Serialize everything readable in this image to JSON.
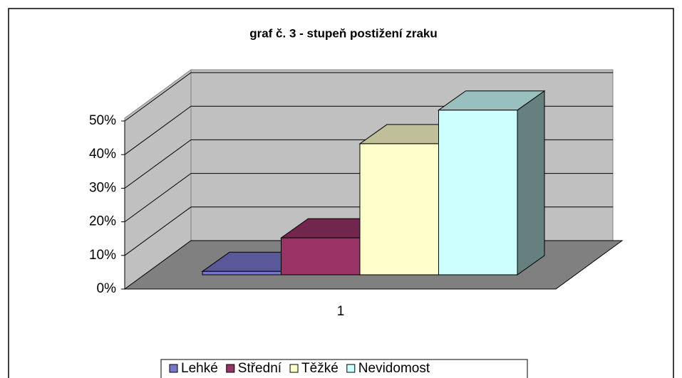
{
  "chart_data": {
    "type": "bar3d",
    "title": "graf č. 3 - stupeň postižení zraku",
    "categories": [
      "1"
    ],
    "series": [
      {
        "name": "Lehké",
        "color": "#7777cc",
        "values": [
          1
        ]
      },
      {
        "name": "Střední",
        "color": "#993366",
        "values": [
          11
        ]
      },
      {
        "name": "Těžké",
        "color": "#ffffcc",
        "values": [
          39
        ]
      },
      {
        "name": "Nevidomost",
        "color": "#ccffff",
        "values": [
          49
        ]
      }
    ],
    "ylim": [
      0,
      50
    ],
    "yticks": [
      {
        "value": 0,
        "label": "0%"
      },
      {
        "value": 10,
        "label": "10%"
      },
      {
        "value": 20,
        "label": "20%"
      },
      {
        "value": 30,
        "label": "30%"
      },
      {
        "value": 40,
        "label": "40%"
      },
      {
        "value": 50,
        "label": "50%"
      }
    ],
    "grid": true,
    "legend": "bottom"
  }
}
